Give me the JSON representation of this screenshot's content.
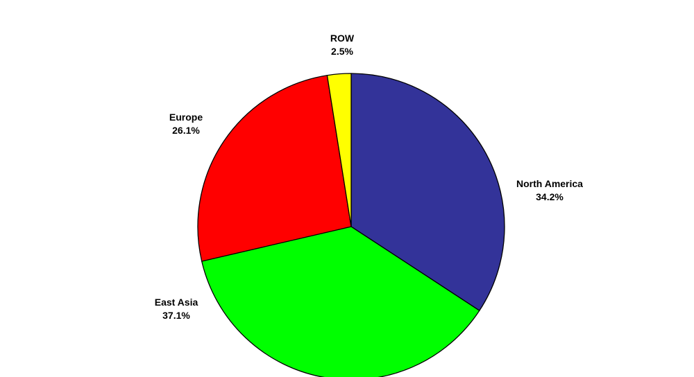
{
  "chart_data": {
    "type": "pie",
    "slices": [
      {
        "label": "North America",
        "value": 34.2,
        "value_label": "34.2%",
        "color": "#333399"
      },
      {
        "label": "East Asia",
        "value": 37.1,
        "value_label": "37.1%",
        "color": "#00ff00"
      },
      {
        "label": "Europe",
        "value": 26.1,
        "value_label": "26.1%",
        "color": "#ff0000"
      },
      {
        "label": "ROW",
        "value": 2.5,
        "value_label": "2.5%",
        "color": "#ffff00"
      }
    ],
    "start_angle": "12 o'clock",
    "direction": "clockwise",
    "legend": "none"
  }
}
